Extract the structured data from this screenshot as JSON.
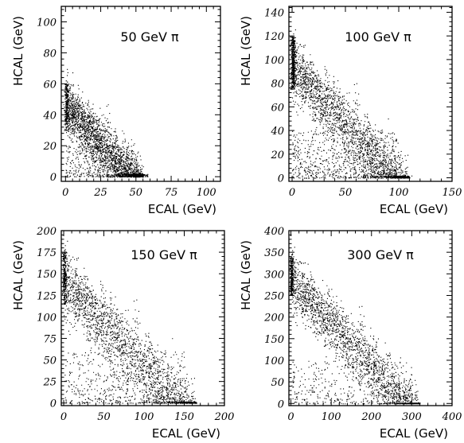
{
  "figure": {
    "panel_count": 4,
    "point_color": "#000000",
    "frame_color": "#000000",
    "background": "#ffffff"
  },
  "chart_data": [
    {
      "type": "scatter",
      "title": "50 GeV π",
      "xlabel": "ECAL (GeV)",
      "ylabel": "HCAL (GeV)",
      "xlim": [
        -3,
        110
      ],
      "ylim": [
        -3,
        110
      ],
      "xticks": [
        0,
        25,
        50,
        75,
        100
      ],
      "yticks": [
        0,
        20,
        40,
        60,
        80,
        100
      ],
      "grid": false,
      "legend": "none",
      "beam_energy": 50,
      "clusters": [
        {
          "desc": "mip in ECAL band",
          "x_center": 0.5,
          "x_spread": 0.8,
          "y_range": [
            30,
            60
          ],
          "points": 200
        },
        {
          "desc": "full ECAL containment",
          "x_center": 50,
          "x_spread": 4,
          "y_range": [
            0,
            2
          ],
          "points": 160
        },
        {
          "desc": "shared shower band",
          "x_range": [
            0,
            55
          ],
          "y_sum": 50,
          "sum_spread": 8,
          "points": 2600
        },
        {
          "desc": "leakage below band",
          "x_range": [
            0,
            50
          ],
          "y_range": [
            0,
            20
          ],
          "points": 400
        }
      ]
    },
    {
      "type": "scatter",
      "title": "100 GeV π",
      "xlabel": "ECAL (GeV)",
      "ylabel": "HCAL (GeV)",
      "xlim": [
        -3,
        150
      ],
      "ylim": [
        -3,
        145
      ],
      "xticks": [
        0,
        50,
        100,
        150
      ],
      "yticks": [
        0,
        20,
        40,
        60,
        80,
        100,
        120,
        140
      ],
      "grid": false,
      "legend": "none",
      "beam_energy": 100,
      "clusters": [
        {
          "desc": "mip in ECAL band",
          "x_center": 0.5,
          "x_spread": 1,
          "y_range": [
            75,
            120
          ],
          "points": 420
        },
        {
          "desc": "full ECAL containment",
          "x_center": 100,
          "x_spread": 6,
          "y_range": [
            0,
            2
          ],
          "points": 60
        },
        {
          "desc": "shared shower band",
          "x_range": [
            0,
            110
          ],
          "y_sum": 100,
          "sum_spread": 12,
          "points": 4200
        },
        {
          "desc": "leakage below band",
          "x_range": [
            0,
            100
          ],
          "y_range": [
            0,
            40
          ],
          "points": 700
        }
      ]
    },
    {
      "type": "scatter",
      "title": "150 GeV π",
      "xlabel": "ECAL (GeV)",
      "ylabel": "HCAL (GeV)",
      "xlim": [
        -3,
        200
      ],
      "ylim": [
        -3,
        200
      ],
      "xticks": [
        0,
        50,
        100,
        150,
        200
      ],
      "yticks": [
        0,
        25,
        50,
        75,
        100,
        125,
        150,
        175,
        200
      ],
      "grid": false,
      "legend": "none",
      "beam_energy": 150,
      "clusters": [
        {
          "desc": "mip in ECAL band",
          "x_center": 0.5,
          "x_spread": 1.2,
          "y_range": [
            115,
            175
          ],
          "points": 220
        },
        {
          "desc": "shared shower band",
          "x_range": [
            0,
            165
          ],
          "y_sum": 150,
          "sum_spread": 18,
          "points": 2400
        },
        {
          "desc": "leakage below band",
          "x_range": [
            0,
            150
          ],
          "y_range": [
            0,
            60
          ],
          "points": 500
        }
      ]
    },
    {
      "type": "scatter",
      "title": "300 GeV π",
      "xlabel": "ECAL (GeV)",
      "ylabel": "HCAL (GeV)",
      "xlim": [
        -5,
        400
      ],
      "ylim": [
        -5,
        400
      ],
      "xticks": [
        0,
        100,
        200,
        300,
        400
      ],
      "yticks": [
        0,
        50,
        100,
        150,
        200,
        250,
        300,
        350,
        400
      ],
      "grid": false,
      "legend": "none",
      "beam_energy": 300,
      "clusters": [
        {
          "desc": "mip in ECAL band",
          "x_center": 1,
          "x_spread": 2,
          "y_range": [
            250,
            340
          ],
          "points": 260
        },
        {
          "desc": "shared shower band",
          "x_range": [
            0,
            320
          ],
          "y_sum": 300,
          "sum_spread": 30,
          "points": 2600
        },
        {
          "desc": "leakage below band",
          "x_range": [
            0,
            300
          ],
          "y_range": [
            0,
            100
          ],
          "points": 400
        }
      ]
    }
  ]
}
